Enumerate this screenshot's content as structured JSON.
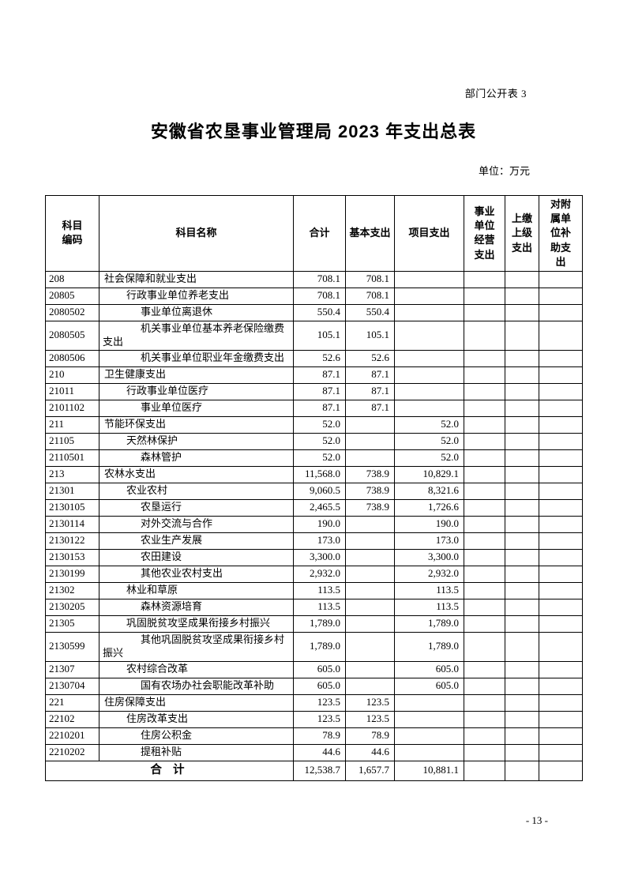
{
  "page": {
    "corner_label": "部门公开表 3",
    "title": "安徽省农垦事业管理局 2023 年支出总表",
    "unit_label": "单位：万元",
    "page_number": "- 13 -"
  },
  "table": {
    "headers": [
      "科目\n编码",
      "科目名称",
      "合计",
      "基本支出",
      "项目支出",
      "事业\n单位\n经营\n支出",
      "上缴\n上级\n支出",
      "对附\n属单\n位补\n助支\n出"
    ],
    "header_names": [
      "科目编码",
      "科目名称",
      "合计",
      "基本支出",
      "项目支出",
      "事业单位经营支出",
      "上缴上级支出",
      "对附属单位补助支出"
    ],
    "rows": [
      {
        "code": "208",
        "name": "社会保障和就业支出",
        "level": 1,
        "vals": [
          "708.1",
          "708.1",
          "",
          "",
          "",
          ""
        ]
      },
      {
        "code": "20805",
        "name": "行政事业单位养老支出",
        "level": 2,
        "vals": [
          "708.1",
          "708.1",
          "",
          "",
          "",
          ""
        ]
      },
      {
        "code": "2080502",
        "name": "事业单位离退休",
        "level": 3,
        "vals": [
          "550.4",
          "550.4",
          "",
          "",
          "",
          ""
        ]
      },
      {
        "code": "2080505",
        "name": "机关事业单位基本养老保险缴费支出",
        "level": 3,
        "vals": [
          "105.1",
          "105.1",
          "",
          "",
          "",
          ""
        ]
      },
      {
        "code": "2080506",
        "name": "机关事业单位职业年金缴费支出",
        "level": 3,
        "vals": [
          "52.6",
          "52.6",
          "",
          "",
          "",
          ""
        ]
      },
      {
        "code": "210",
        "name": "卫生健康支出",
        "level": 1,
        "vals": [
          "87.1",
          "87.1",
          "",
          "",
          "",
          ""
        ]
      },
      {
        "code": "21011",
        "name": "行政事业单位医疗",
        "level": 2,
        "vals": [
          "87.1",
          "87.1",
          "",
          "",
          "",
          ""
        ]
      },
      {
        "code": "2101102",
        "name": "事业单位医疗",
        "level": 3,
        "vals": [
          "87.1",
          "87.1",
          "",
          "",
          "",
          ""
        ]
      },
      {
        "code": "211",
        "name": "节能环保支出",
        "level": 1,
        "vals": [
          "52.0",
          "",
          "52.0",
          "",
          "",
          ""
        ]
      },
      {
        "code": "21105",
        "name": "天然林保护",
        "level": 2,
        "vals": [
          "52.0",
          "",
          "52.0",
          "",
          "",
          ""
        ]
      },
      {
        "code": "2110501",
        "name": "森林管护",
        "level": 3,
        "vals": [
          "52.0",
          "",
          "52.0",
          "",
          "",
          ""
        ]
      },
      {
        "code": "213",
        "name": "农林水支出",
        "level": 1,
        "vals": [
          "11,568.0",
          "738.9",
          "10,829.1",
          "",
          "",
          ""
        ]
      },
      {
        "code": "21301",
        "name": "农业农村",
        "level": 2,
        "vals": [
          "9,060.5",
          "738.9",
          "8,321.6",
          "",
          "",
          ""
        ]
      },
      {
        "code": "2130105",
        "name": "农垦运行",
        "level": 3,
        "vals": [
          "2,465.5",
          "738.9",
          "1,726.6",
          "",
          "",
          ""
        ]
      },
      {
        "code": "2130114",
        "name": "对外交流与合作",
        "level": 3,
        "vals": [
          "190.0",
          "",
          "190.0",
          "",
          "",
          ""
        ]
      },
      {
        "code": "2130122",
        "name": "农业生产发展",
        "level": 3,
        "vals": [
          "173.0",
          "",
          "173.0",
          "",
          "",
          ""
        ]
      },
      {
        "code": "2130153",
        "name": "农田建设",
        "level": 3,
        "vals": [
          "3,300.0",
          "",
          "3,300.0",
          "",
          "",
          ""
        ]
      },
      {
        "code": "2130199",
        "name": "其他农业农村支出",
        "level": 3,
        "vals": [
          "2,932.0",
          "",
          "2,932.0",
          "",
          "",
          ""
        ]
      },
      {
        "code": "21302",
        "name": "林业和草原",
        "level": 2,
        "vals": [
          "113.5",
          "",
          "113.5",
          "",
          "",
          ""
        ]
      },
      {
        "code": "2130205",
        "name": "森林资源培育",
        "level": 3,
        "vals": [
          "113.5",
          "",
          "113.5",
          "",
          "",
          ""
        ]
      },
      {
        "code": "21305",
        "name": "巩固脱贫攻坚成果衔接乡村振兴",
        "level": 2,
        "vals": [
          "1,789.0",
          "",
          "1,789.0",
          "",
          "",
          ""
        ]
      },
      {
        "code": "2130599",
        "name": "其他巩固脱贫攻坚成果衔接乡村振兴",
        "level": 3,
        "vals": [
          "1,789.0",
          "",
          "1,789.0",
          "",
          "",
          ""
        ]
      },
      {
        "code": "21307",
        "name": "农村综合改革",
        "level": 2,
        "vals": [
          "605.0",
          "",
          "605.0",
          "",
          "",
          ""
        ]
      },
      {
        "code": "2130704",
        "name": "国有农场办社会职能改革补助",
        "level": 3,
        "vals": [
          "605.0",
          "",
          "605.0",
          "",
          "",
          ""
        ]
      },
      {
        "code": "221",
        "name": "住房保障支出",
        "level": 1,
        "vals": [
          "123.5",
          "123.5",
          "",
          "",
          "",
          ""
        ]
      },
      {
        "code": "22102",
        "name": "住房改革支出",
        "level": 2,
        "vals": [
          "123.5",
          "123.5",
          "",
          "",
          "",
          ""
        ]
      },
      {
        "code": "2210201",
        "name": "住房公积金",
        "level": 3,
        "vals": [
          "78.9",
          "78.9",
          "",
          "",
          "",
          ""
        ]
      },
      {
        "code": "2210202",
        "name": "提租补贴",
        "level": 3,
        "vals": [
          "44.6",
          "44.6",
          "",
          "",
          "",
          ""
        ]
      }
    ],
    "total_row": {
      "label": "合 计",
      "vals": [
        "12,538.7",
        "1,657.7",
        "10,881.1",
        "",
        "",
        ""
      ]
    }
  }
}
